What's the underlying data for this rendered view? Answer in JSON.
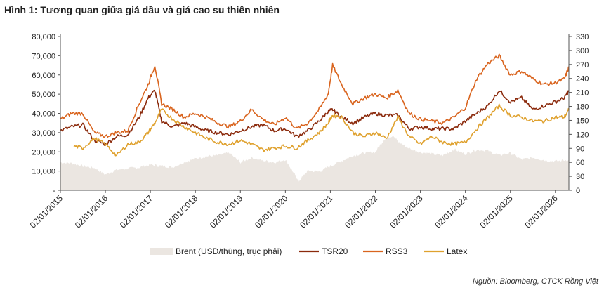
{
  "title": "Hình 1: Tương quan giữa giá dầu và giá cao su thiên nhiên",
  "source": "Nguồn: Bloomberg, CTCK Rồng Việt",
  "colors": {
    "brent": "#ebe6e1",
    "tsr20": "#8b2a0c",
    "rss3": "#d9641e",
    "latex": "#dfa12e",
    "axis": "#555555",
    "text": "#222222"
  },
  "chart_data": {
    "type": "line",
    "title": "Hình 1: Tương quan giữa giá dầu và giá cao su thiên nhiên",
    "x_start": 2015.0,
    "x_end": 2026.3,
    "x_ticks": [
      2015,
      2016,
      2017,
      2018,
      2019,
      2020,
      2021,
      2022,
      2023,
      2024,
      2025,
      2026
    ],
    "x_tick_labels": [
      "02/01/2015",
      "02/01/2016",
      "02/01/2017",
      "02/01/2018",
      "02/01/2019",
      "02/01/2020",
      "02/01/2021",
      "02/01/2022",
      "02/01/2023",
      "02/01/2024",
      "02/01/2025",
      "02/01/2026"
    ],
    "y_left": {
      "range": [
        0,
        80000
      ],
      "ticks": [
        0,
        10000,
        20000,
        30000,
        40000,
        50000,
        60000,
        70000,
        80000
      ],
      "tick_labels": [
        "-",
        "10,000",
        "20,000",
        "30,000",
        "40,000",
        "50,000",
        "60,000",
        "70,000",
        "80,000"
      ]
    },
    "y_right": {
      "range": [
        0,
        330
      ],
      "ticks": [
        0,
        30,
        60,
        90,
        120,
        150,
        180,
        210,
        240,
        270,
        300,
        330
      ],
      "tick_labels": [
        "0",
        "30",
        "60",
        "90",
        "120",
        "150",
        "180",
        "210",
        "240",
        "270",
        "300",
        "330"
      ]
    },
    "series": [
      {
        "name": "Brent (USD/thùng, trục phải)",
        "key": "brent",
        "kind": "area",
        "axis": "right",
        "x": [
          2015.0,
          2015.25,
          2015.5,
          2015.75,
          2016.0,
          2016.25,
          2016.5,
          2016.75,
          2017.0,
          2017.25,
          2017.5,
          2017.75,
          2018.0,
          2018.25,
          2018.5,
          2018.75,
          2019.0,
          2019.25,
          2019.5,
          2019.75,
          2020.0,
          2020.2,
          2020.3,
          2020.5,
          2020.75,
          2021.0,
          2021.25,
          2021.5,
          2021.75,
          2022.0,
          2022.2,
          2022.4,
          2022.5,
          2022.75,
          2023.0,
          2023.25,
          2023.5,
          2023.75,
          2024.0,
          2024.25,
          2024.5,
          2024.75,
          2025.0,
          2025.25,
          2025.5,
          2025.75,
          2026.0,
          2026.3
        ],
        "values": [
          60,
          58,
          52,
          48,
          34,
          44,
          47,
          49,
          55,
          52,
          50,
          60,
          68,
          73,
          75,
          80,
          60,
          70,
          64,
          60,
          66,
          35,
          20,
          42,
          40,
          52,
          63,
          74,
          80,
          82,
          110,
          118,
          105,
          90,
          82,
          78,
          75,
          88,
          78,
          87,
          85,
          75,
          80,
          66,
          70,
          65,
          62,
          66
        ]
      },
      {
        "name": "TSR20",
        "key": "tsr20",
        "kind": "line",
        "axis": "left",
        "x": [
          2015.0,
          2015.25,
          2015.5,
          2015.75,
          2016.0,
          2016.25,
          2016.5,
          2016.75,
          2016.95,
          2017.1,
          2017.25,
          2017.5,
          2017.75,
          2018.0,
          2018.25,
          2018.5,
          2018.75,
          2019.0,
          2019.25,
          2019.5,
          2019.75,
          2020.0,
          2020.25,
          2020.5,
          2020.75,
          2020.95,
          2021.05,
          2021.25,
          2021.5,
          2021.75,
          2022.0,
          2022.25,
          2022.5,
          2022.75,
          2023.0,
          2023.25,
          2023.5,
          2023.75,
          2024.0,
          2024.25,
          2024.5,
          2024.75,
          2025.0,
          2025.25,
          2025.5,
          2025.75,
          2026.0,
          2026.2,
          2026.3
        ],
        "values": [
          31000,
          33000,
          34000,
          26000,
          24000,
          28000,
          29000,
          38000,
          48000,
          52000,
          36000,
          33000,
          35000,
          33000,
          31000,
          30000,
          29000,
          31000,
          33000,
          34000,
          31000,
          32000,
          28000,
          31000,
          36000,
          41000,
          42000,
          38000,
          35000,
          38000,
          40000,
          39000,
          39000,
          32000,
          33000,
          32000,
          32000,
          32000,
          36000,
          40000,
          44000,
          52000,
          46000,
          48000,
          42000,
          44000,
          46000,
          48000,
          52000
        ]
      },
      {
        "name": "RSS3",
        "key": "rss3",
        "kind": "line",
        "axis": "left",
        "x": [
          2015.0,
          2015.25,
          2015.5,
          2015.75,
          2016.0,
          2016.25,
          2016.5,
          2016.75,
          2016.95,
          2017.1,
          2017.25,
          2017.5,
          2017.75,
          2018.0,
          2018.25,
          2018.5,
          2018.75,
          2019.0,
          2019.25,
          2019.5,
          2019.75,
          2020.0,
          2020.25,
          2020.5,
          2020.75,
          2020.95,
          2021.05,
          2021.25,
          2021.5,
          2021.75,
          2022.0,
          2022.25,
          2022.5,
          2022.75,
          2023.0,
          2023.25,
          2023.5,
          2023.75,
          2024.0,
          2024.25,
          2024.5,
          2024.75,
          2025.0,
          2025.25,
          2025.5,
          2025.75,
          2026.0,
          2026.2,
          2026.3
        ],
        "values": [
          37000,
          40000,
          40000,
          30000,
          28000,
          30000,
          31000,
          45000,
          55000,
          65000,
          45000,
          42000,
          38000,
          40000,
          38000,
          35000,
          33000,
          36000,
          42000,
          37000,
          34000,
          38000,
          32000,
          35000,
          42000,
          50000,
          65000,
          55000,
          45000,
          48000,
          50000,
          48000,
          52000,
          40000,
          37000,
          36000,
          35000,
          38000,
          43000,
          58000,
          66000,
          70000,
          60000,
          62000,
          58000,
          55000,
          56000,
          58000,
          64000
        ]
      },
      {
        "name": "Latex",
        "key": "latex",
        "kind": "line",
        "axis": "left",
        "x": [
          2015.3,
          2015.5,
          2015.75,
          2016.0,
          2016.25,
          2016.5,
          2016.75,
          2016.95,
          2017.1,
          2017.25,
          2017.5,
          2017.75,
          2018.0,
          2018.25,
          2018.5,
          2018.75,
          2019.0,
          2019.25,
          2019.5,
          2019.75,
          2020.0,
          2020.25,
          2020.5,
          2020.75,
          2020.95,
          2021.05,
          2021.25,
          2021.5,
          2021.75,
          2022.0,
          2022.25,
          2022.5,
          2022.75,
          2023.0,
          2023.25,
          2023.5,
          2023.75,
          2024.0,
          2024.25,
          2024.5,
          2024.75,
          2025.0,
          2025.25,
          2025.5,
          2025.75,
          2026.0,
          2026.2,
          2026.3
        ],
        "values": [
          23000,
          22000,
          27000,
          24000,
          18000,
          24000,
          25000,
          30000,
          35000,
          42000,
          37000,
          33000,
          30000,
          27000,
          25000,
          24000,
          26000,
          24000,
          21000,
          22000,
          23000,
          22000,
          26000,
          30000,
          35000,
          39000,
          38000,
          30000,
          28000,
          30000,
          27000,
          38000,
          28000,
          24000,
          28000,
          25000,
          24000,
          25000,
          32000,
          38000,
          44000,
          39000,
          38000,
          36000,
          36000,
          38000,
          38000,
          42000
        ]
      }
    ],
    "legend": {
      "position": "bottom",
      "items": [
        {
          "label": "Brent (USD/thùng, trục phải)",
          "key": "brent",
          "swatch": "area"
        },
        {
          "label": "TSR20",
          "key": "tsr20",
          "swatch": "line"
        },
        {
          "label": "RSS3",
          "key": "rss3",
          "swatch": "line"
        },
        {
          "label": "Latex",
          "key": "latex",
          "swatch": "line"
        }
      ]
    }
  }
}
